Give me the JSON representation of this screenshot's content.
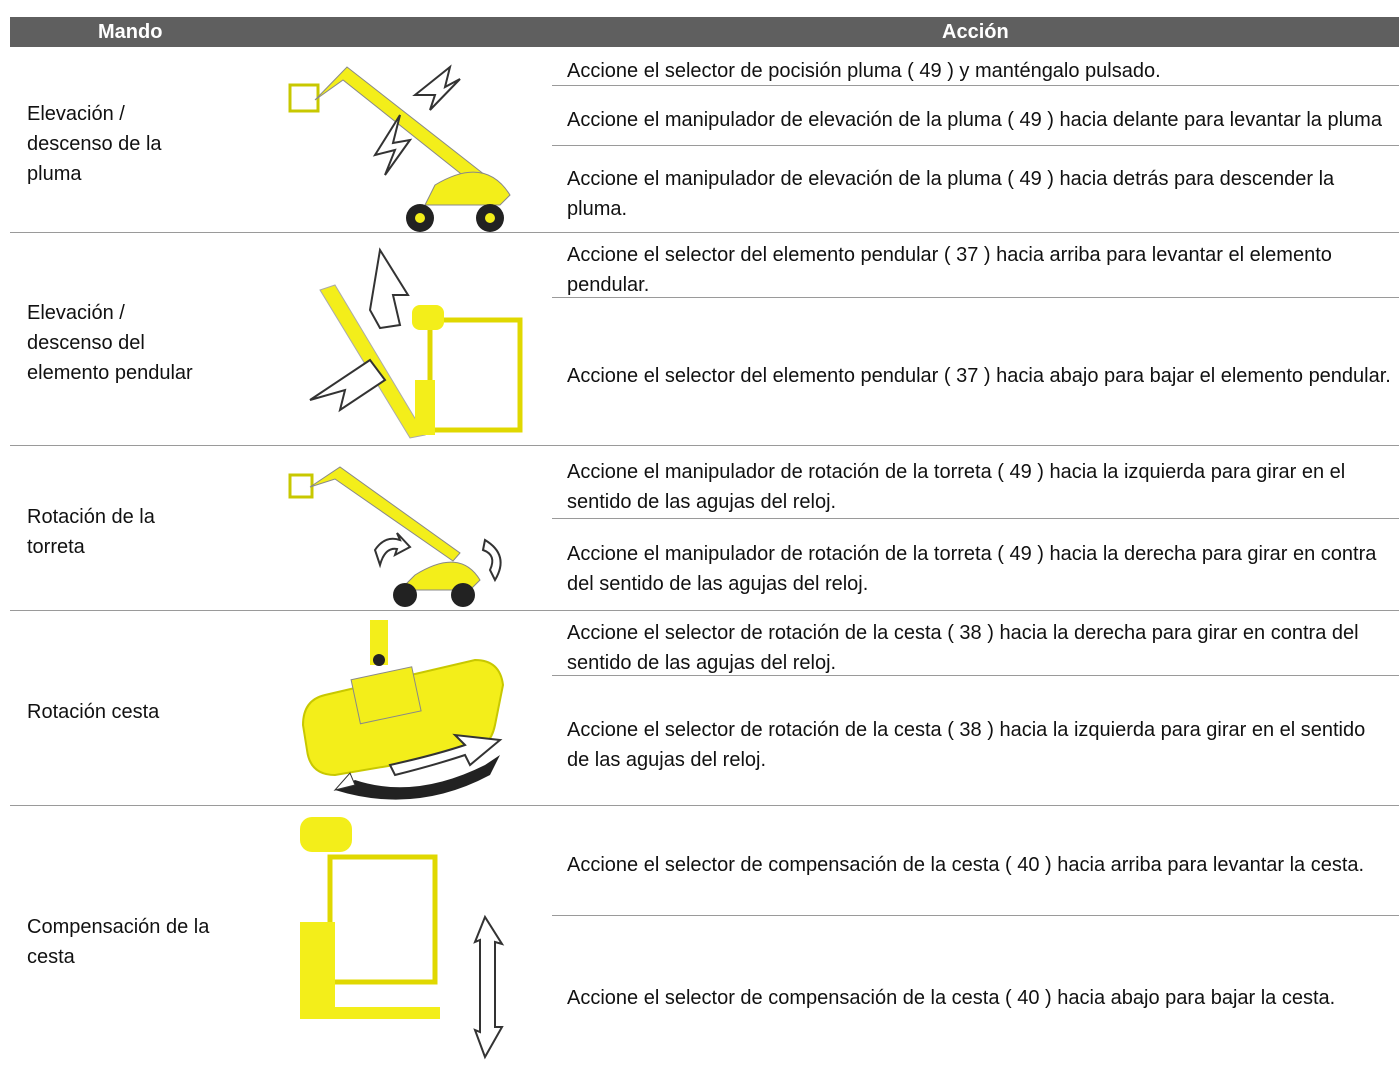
{
  "header": {
    "mando": "Mando",
    "accion": "Acción"
  },
  "rows": [
    {
      "mando": [
        "Elevación /",
        "descenso de la",
        "pluma"
      ],
      "acciones": [
        "Accione el selector de pocisión pluma ( 49 ) y manténgalo pulsado.",
        "Accione el manipulador de elevación de la pluma ( 49 ) hacia delante para levantar la pluma",
        "Accione el manipulador de elevación de la pluma ( 49 ) hacia detrás para descender la pluma."
      ]
    },
    {
      "mando": [
        "Elevación /",
        "descenso del",
        "elemento pendular"
      ],
      "acciones": [
        "Accione el selector del elemento pendular ( 37 ) hacia arriba para levantar el elemento pendular.",
        "Accione el selector del elemento pendular ( 37 ) hacia abajo para bajar el elemento pendular."
      ]
    },
    {
      "mando": [
        "Rotación de la",
        "torreta"
      ],
      "acciones": [
        "Accione el manipulador de rotación de la torreta ( 49 ) hacia la izquierda para girar en el sentido de las agujas del reloj.",
        "Accione el manipulador de rotación de la torreta ( 49 ) hacia la derecha para girar en contra del sentido de las agujas del reloj."
      ]
    },
    {
      "mando": [
        "Rotación cesta"
      ],
      "acciones": [
        "Accione el selector de rotación de la cesta ( 38 ) hacia la derecha para girar en contra del sentido de las agujas del reloj.",
        "Accione el selector de rotación de la cesta ( 38 ) hacia la izquierda para girar en el sentido de las agujas del reloj."
      ]
    },
    {
      "mando": [
        "Compensación de la",
        "cesta"
      ],
      "acciones": [
        "Accione el selector de compensación de la cesta ( 40 ) hacia arriba para levantar la cesta.",
        "Accione el selector de compensación de la cesta ( 40 ) hacia abajo para bajar la cesta."
      ]
    }
  ]
}
